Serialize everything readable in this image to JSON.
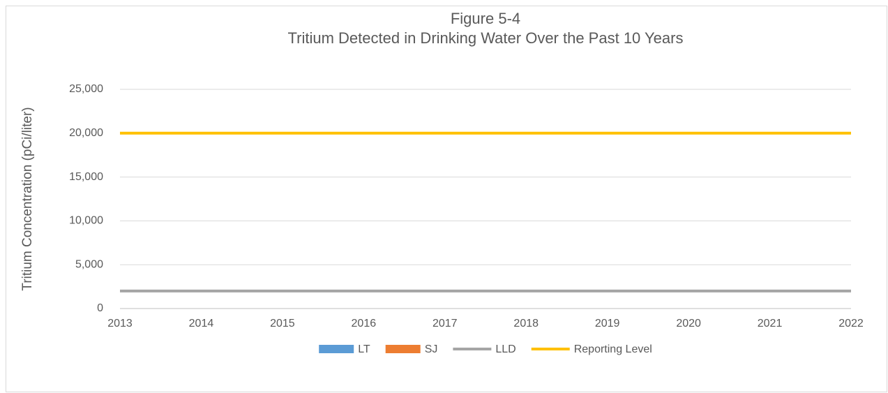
{
  "chart_data": {
    "type": "line",
    "title": "Figure 5-4",
    "subtitle": "Tritium Detected in Drinking Water Over the Past 10 Years",
    "y_label": "Tritium Concentration (pCi/liter)",
    "x": [
      2013,
      2014,
      2015,
      2016,
      2017,
      2018,
      2019,
      2020,
      2021,
      2022
    ],
    "xlim": [
      2013,
      2022
    ],
    "xticks": [
      2013,
      2014,
      2015,
      2016,
      2017,
      2018,
      2019,
      2020,
      2021,
      2022
    ],
    "ylim": [
      0,
      25000
    ],
    "yticks": [
      0,
      {
        "value": 5000,
        "label": "5,000"
      },
      {
        "value": 10000,
        "label": "10,000"
      },
      {
        "value": 15000,
        "label": "15,000"
      },
      {
        "value": 20000,
        "label": "20,000"
      },
      {
        "value": 25000,
        "label": "25,000"
      }
    ],
    "grid": true,
    "legend": "bottom",
    "series": [
      {
        "name": "LT",
        "color": "#5b9bd5",
        "mark": "bar",
        "values": [
          null,
          null,
          null,
          null,
          null,
          null,
          null,
          null,
          null,
          null
        ]
      },
      {
        "name": "SJ",
        "color": "#ed7d31",
        "mark": "bar",
        "values": [
          null,
          null,
          null,
          null,
          null,
          null,
          null,
          null,
          null,
          null
        ]
      },
      {
        "name": "LLD",
        "color": "#a5a5a5",
        "mark": "line",
        "values": [
          2000,
          2000,
          2000,
          2000,
          2000,
          2000,
          2000,
          2000,
          2000,
          2000
        ]
      },
      {
        "name": "Reporting Level",
        "color": "#ffc000",
        "mark": "line",
        "values": [
          20000,
          20000,
          20000,
          20000,
          20000,
          20000,
          20000,
          20000,
          20000,
          20000
        ]
      }
    ]
  }
}
